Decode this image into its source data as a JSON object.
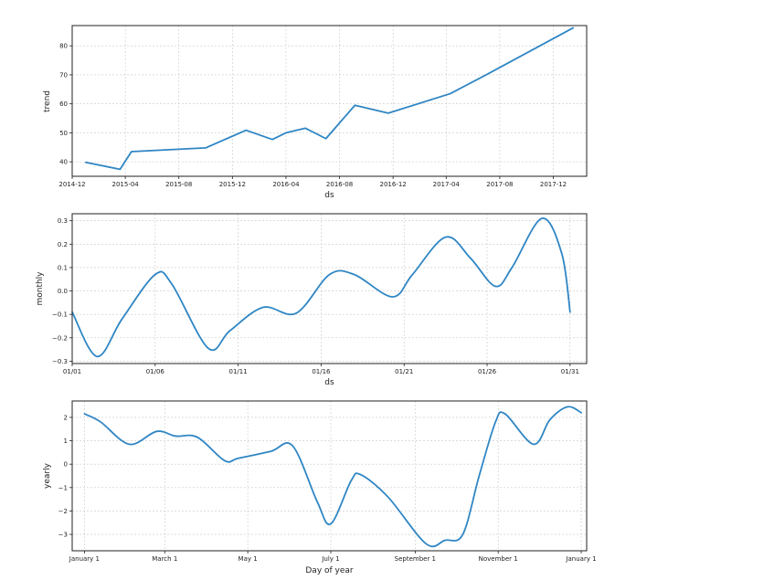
{
  "colors": {
    "line": "#2f86c4",
    "grid": "#c8c8c8",
    "axis": "#222222"
  },
  "chart_data": [
    {
      "name": "trend",
      "type": "line",
      "title": "",
      "xlabel": "ds",
      "ylabel": "trend",
      "x_scale": "date",
      "xlim": [
        "2014-12-01",
        "2018-02-15"
      ],
      "ylim": [
        35,
        87
      ],
      "grid": true,
      "xticks": [
        {
          "value": "2014-12-01",
          "label": "2014-12"
        },
        {
          "value": "2015-04-01",
          "label": "2015-04"
        },
        {
          "value": "2015-08-01",
          "label": "2015-08"
        },
        {
          "value": "2015-12-01",
          "label": "2015-12"
        },
        {
          "value": "2016-04-01",
          "label": "2016-04"
        },
        {
          "value": "2016-08-01",
          "label": "2016-08"
        },
        {
          "value": "2016-12-01",
          "label": "2016-12"
        },
        {
          "value": "2017-04-01",
          "label": "2017-04"
        },
        {
          "value": "2017-08-01",
          "label": "2017-08"
        },
        {
          "value": "2017-12-01",
          "label": "2017-12"
        }
      ],
      "yticks": [
        40,
        50,
        60,
        70,
        80
      ],
      "series": [
        {
          "x": [
            "2015-01-01",
            "2015-03-20",
            "2015-04-15",
            "2015-10-01",
            "2016-01-01",
            "2016-03-01",
            "2016-04-01",
            "2016-05-15",
            "2016-07-01",
            "2016-09-05",
            "2016-11-20",
            "2017-04-10",
            "2017-07-01",
            "2018-01-15"
          ],
          "y": [
            39.8,
            37.4,
            43.5,
            44.8,
            50.9,
            47.7,
            50.0,
            51.6,
            48.0,
            59.5,
            56.8,
            63.5,
            70.0,
            86.2
          ]
        }
      ]
    },
    {
      "name": "monthly",
      "type": "line",
      "title": "",
      "xlabel": "ds",
      "ylabel": "monthly",
      "xlim": [
        0,
        31
      ],
      "ylim": [
        -0.31,
        0.33
      ],
      "grid": true,
      "xticks": [
        {
          "value": 0,
          "label": "01/01"
        },
        {
          "value": 5,
          "label": "01/06"
        },
        {
          "value": 10,
          "label": "01/11"
        },
        {
          "value": 15,
          "label": "01/16"
        },
        {
          "value": 20,
          "label": "01/21"
        },
        {
          "value": 25,
          "label": "01/26"
        },
        {
          "value": 30,
          "label": "01/31"
        }
      ],
      "yticks": [
        {
          "value": -0.3,
          "label": "−0.3"
        },
        {
          "value": -0.2,
          "label": "−0.2"
        },
        {
          "value": -0.1,
          "label": "−0.1"
        },
        {
          "value": 0.0,
          "label": "0.0"
        },
        {
          "value": 0.1,
          "label": "0.1"
        },
        {
          "value": 0.2,
          "label": "0.2"
        },
        {
          "value": 0.3,
          "label": "0.3"
        }
      ],
      "series": [
        {
          "x": [
            0,
            1.5,
            3,
            5,
            6,
            8.2,
            9.5,
            11.5,
            13.5,
            15.5,
            17,
            19.3,
            20.5,
            22.5,
            24,
            25.5,
            26.5,
            28.3,
            29.5,
            30
          ],
          "y": [
            -0.09,
            -0.28,
            -0.12,
            0.07,
            0.03,
            -0.245,
            -0.17,
            -0.07,
            -0.095,
            0.07,
            0.07,
            -0.025,
            0.07,
            0.23,
            0.14,
            0.02,
            0.1,
            0.31,
            0.16,
            -0.09
          ]
        }
      ]
    },
    {
      "name": "yearly",
      "type": "line",
      "title": "",
      "xlabel": "Day of year",
      "ylabel": "yearly",
      "xlim": [
        -9,
        369
      ],
      "ylim": [
        -3.7,
        2.7
      ],
      "grid": true,
      "xticks": [
        {
          "value": 0,
          "label": "January 1"
        },
        {
          "value": 59,
          "label": "March 1"
        },
        {
          "value": 120,
          "label": "May 1"
        },
        {
          "value": 181,
          "label": "July 1"
        },
        {
          "value": 243,
          "label": "September 1"
        },
        {
          "value": 304,
          "label": "November 1"
        },
        {
          "value": 365,
          "label": "January 1"
        }
      ],
      "yticks": [
        {
          "value": -3,
          "label": "−3"
        },
        {
          "value": -2,
          "label": "−2"
        },
        {
          "value": -1,
          "label": "−1"
        },
        {
          "value": 0,
          "label": "0"
        },
        {
          "value": 1,
          "label": "1"
        },
        {
          "value": 2,
          "label": "2"
        }
      ],
      "series": [
        {
          "x": [
            0,
            12,
            33,
            53,
            67,
            83,
            103,
            113,
            137,
            153,
            171,
            181,
            196,
            203,
            223,
            251,
            265,
            278,
            290,
            302,
            309,
            330,
            342,
            355,
            365
          ],
          "y": [
            2.15,
            1.8,
            0.85,
            1.4,
            1.2,
            1.15,
            0.15,
            0.25,
            0.55,
            0.78,
            -1.6,
            -2.55,
            -0.7,
            -0.45,
            -1.4,
            -3.4,
            -3.25,
            -3.0,
            -0.5,
            1.8,
            2.15,
            0.85,
            1.9,
            2.45,
            2.2
          ]
        }
      ]
    }
  ]
}
